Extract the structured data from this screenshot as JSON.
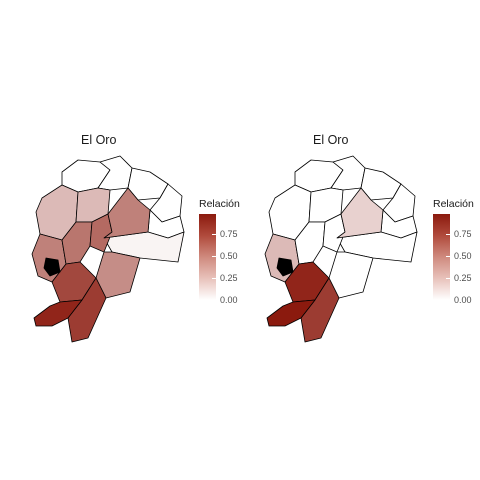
{
  "panels": [
    {
      "title": "El Oro",
      "legend": {
        "title": "Relación",
        "ticks": [
          "0.75",
          "0.50",
          "0.25",
          "0.00"
        ]
      },
      "regions": [
        {
          "name": "north-1",
          "value": 0.0
        },
        {
          "name": "north-2",
          "value": 0.0
        },
        {
          "name": "north-3",
          "value": 0.0
        },
        {
          "name": "north-east",
          "value": 0.0
        },
        {
          "name": "east-mid",
          "value": 0.0
        },
        {
          "name": "east-south",
          "value": 0.05
        },
        {
          "name": "coast-north",
          "value": 0.3
        },
        {
          "name": "coast-mid",
          "value": 0.55
        },
        {
          "name": "centre-north",
          "value": 0.3
        },
        {
          "name": "centre-west",
          "value": 0.6
        },
        {
          "name": "centre-mid",
          "value": 0.65
        },
        {
          "name": "centre-east",
          "value": 0.55
        },
        {
          "name": "amazon-west",
          "value": 0.5
        },
        {
          "name": "south-centre",
          "value": 0.8
        },
        {
          "name": "south-east",
          "value": 0.85
        },
        {
          "name": "south-west",
          "value": 0.95
        },
        {
          "name": "el-oro",
          "value": 1.0
        }
      ]
    },
    {
      "title": "El Oro",
      "legend": {
        "title": "Relación",
        "ticks": [
          "0.75",
          "0.50",
          "0.25",
          "0.00"
        ]
      },
      "regions": [
        {
          "name": "north-1",
          "value": 0.0
        },
        {
          "name": "north-2",
          "value": 0.0
        },
        {
          "name": "north-3",
          "value": 0.0
        },
        {
          "name": "north-east",
          "value": 0.0
        },
        {
          "name": "east-mid",
          "value": 0.0
        },
        {
          "name": "east-south",
          "value": 0.0
        },
        {
          "name": "coast-north",
          "value": 0.0
        },
        {
          "name": "coast-mid",
          "value": 0.3
        },
        {
          "name": "centre-north",
          "value": 0.0
        },
        {
          "name": "centre-west",
          "value": 0.0
        },
        {
          "name": "centre-mid",
          "value": 0.0
        },
        {
          "name": "centre-east",
          "value": 0.2
        },
        {
          "name": "amazon-west",
          "value": 0.0
        },
        {
          "name": "south-centre",
          "value": 0.95
        },
        {
          "name": "south-east",
          "value": 0.85
        },
        {
          "name": "south-west",
          "value": 1.0
        },
        {
          "name": "el-oro",
          "value": 1.0
        }
      ]
    }
  ],
  "colors": {
    "low": "#ffffff",
    "high": "#8b1a0e",
    "border": "#000000"
  }
}
